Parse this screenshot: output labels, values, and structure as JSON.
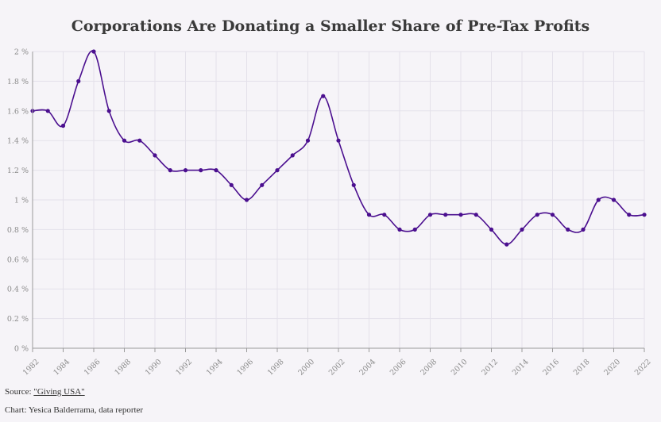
{
  "chart_data": {
    "type": "line",
    "title": "Corporations Are Donating a Smaller Share of Pre-Tax Profits",
    "x": [
      1982,
      1983,
      1984,
      1985,
      1986,
      1987,
      1988,
      1989,
      1990,
      1991,
      1992,
      1993,
      1994,
      1995,
      1996,
      1997,
      1998,
      1999,
      2000,
      2001,
      2002,
      2003,
      2004,
      2005,
      2006,
      2007,
      2008,
      2009,
      2010,
      2011,
      2012,
      2013,
      2014,
      2015,
      2016,
      2017,
      2018,
      2019,
      2020,
      2021,
      2022
    ],
    "series": [
      {
        "values": [
          1.6,
          1.6,
          1.5,
          1.8,
          2.0,
          1.6,
          1.4,
          1.4,
          1.3,
          1.2,
          1.2,
          1.2,
          1.2,
          1.1,
          1.0,
          1.1,
          1.2,
          1.3,
          1.4,
          1.7,
          1.4,
          1.1,
          0.9,
          0.9,
          0.8,
          0.8,
          0.9,
          0.9,
          0.9,
          0.9,
          0.8,
          0.7,
          0.8,
          0.9,
          0.9,
          0.8,
          0.8,
          1.0,
          1.0,
          0.9,
          0.9
        ],
        "color": "#4b0f8f"
      }
    ],
    "ylim": [
      0,
      2
    ],
    "xlim": [
      1982,
      2022
    ],
    "y_ticks": [
      "0 %",
      "0.2 %",
      "0.4 %",
      "0.6 %",
      "0.8 %",
      "1 %",
      "1.2 %",
      "1.4 %",
      "1.6 %",
      "1.8 %",
      "2 %"
    ],
    "x_ticks": [
      "1982",
      "1984",
      "1986",
      "1988",
      "1990",
      "1992",
      "1994",
      "1996",
      "1998",
      "2000",
      "2002",
      "2004",
      "2006",
      "2008",
      "2010",
      "2012",
      "2014",
      "2016",
      "2018",
      "2020",
      "2022"
    ],
    "grid": true,
    "line_style": "smooth with point markers"
  },
  "footer": {
    "source_prefix": "Source: ",
    "source_link": "\"Giving USA\"",
    "credit": "Chart: Yesica Balderrama, data reporter"
  },
  "colors": {
    "background": "#f6f4f8",
    "grid": "#e4e1ea",
    "line": "#4b0f8f"
  }
}
